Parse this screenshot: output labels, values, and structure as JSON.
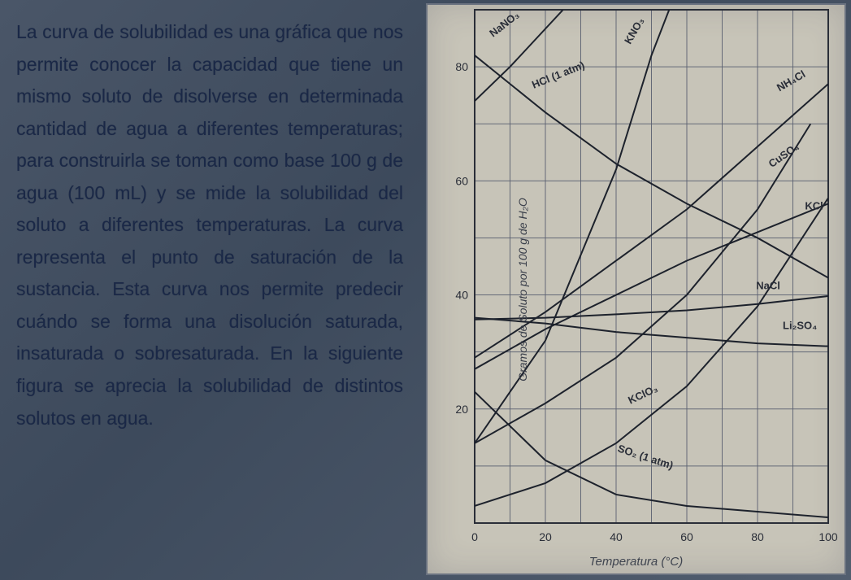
{
  "text": {
    "body": "La curva de solubilidad es una gráfica que nos permite conocer la capacidad que tiene un mismo soluto de disolverse en determinada cantidad de agua a diferentes temperaturas; para construirla se toman como base 100 g de agua (100 mL) y se mide la solubilidad del soluto a diferentes temperaturas. La curva representa el punto de saturación de la sustancia. Esta curva nos permite predecir cuándo se forma una disolución saturada, insaturada o sobresaturada. En la siguiente figura se aprecia la solubilidad de distintos solutos en agua."
  },
  "chart": {
    "type": "line",
    "background_color": "#c7c4b8",
    "grid_color": "#5a6070",
    "axis_color": "#2a2e38",
    "line_color": "#1d222c",
    "line_width": 2,
    "xlabel": "Temperatura (°C)",
    "ylabel": "Gramos de Soluto por 100 g de H₂O",
    "label_fontsize": 14,
    "tick_fontsize": 14,
    "xlim": [
      0,
      100
    ],
    "ylim": [
      0,
      90
    ],
    "xtick_step": 20,
    "yticks": [
      20,
      40,
      60,
      80
    ],
    "series": [
      {
        "name": "NaNO3",
        "label": "NaNO₃",
        "points": [
          [
            0,
            74
          ],
          [
            10,
            80
          ],
          [
            25,
            90
          ]
        ],
        "label_xy": [
          9,
          87
        ],
        "label_angle": -38
      },
      {
        "name": "HCl",
        "label": "HCl (1 atm)",
        "points": [
          [
            0,
            82
          ],
          [
            20,
            72
          ],
          [
            40,
            63
          ],
          [
            60,
            56
          ],
          [
            80,
            50
          ],
          [
            100,
            43
          ]
        ],
        "label_xy": [
          24,
          78
        ],
        "label_angle": -22
      },
      {
        "name": "KNO3",
        "label": "KNO₃",
        "points": [
          [
            0,
            14
          ],
          [
            20,
            32
          ],
          [
            40,
            62
          ],
          [
            50,
            82
          ],
          [
            55,
            90
          ]
        ],
        "label_xy": [
          46,
          86
        ],
        "label_angle": -60
      },
      {
        "name": "NH4Cl",
        "label": "NH₄Cl",
        "points": [
          [
            0,
            29
          ],
          [
            20,
            37
          ],
          [
            40,
            46
          ],
          [
            60,
            55
          ],
          [
            80,
            66
          ],
          [
            100,
            77
          ]
        ],
        "label_xy": [
          90,
          77
        ],
        "label_angle": -30
      },
      {
        "name": "CuSO4",
        "label": "CuSO₄",
        "points": [
          [
            0,
            14
          ],
          [
            20,
            21
          ],
          [
            40,
            29
          ],
          [
            60,
            40
          ],
          [
            80,
            55
          ],
          [
            95,
            70
          ]
        ],
        "label_xy": [
          88,
          64
        ],
        "label_angle": -35
      },
      {
        "name": "KCl",
        "label": "KCl",
        "points": [
          [
            0,
            27
          ],
          [
            20,
            34
          ],
          [
            40,
            40
          ],
          [
            60,
            46
          ],
          [
            80,
            51
          ],
          [
            100,
            56
          ]
        ],
        "label_xy": [
          96,
          55
        ],
        "label_angle": 0
      },
      {
        "name": "NaCl",
        "label": "NaCl",
        "points": [
          [
            0,
            35.7
          ],
          [
            20,
            36
          ],
          [
            40,
            36.6
          ],
          [
            60,
            37.3
          ],
          [
            80,
            38.4
          ],
          [
            100,
            39.8
          ]
        ],
        "label_xy": [
          83,
          41
        ],
        "label_angle": 0
      },
      {
        "name": "Li2SO4",
        "label": "Li₂SO₄",
        "points": [
          [
            0,
            36
          ],
          [
            20,
            35
          ],
          [
            40,
            33.5
          ],
          [
            60,
            32.5
          ],
          [
            80,
            31.5
          ],
          [
            100,
            31
          ]
        ],
        "label_xy": [
          92,
          34
        ],
        "label_angle": 0
      },
      {
        "name": "KClO3",
        "label": "KClO₃",
        "points": [
          [
            0,
            3
          ],
          [
            20,
            7
          ],
          [
            40,
            14
          ],
          [
            60,
            24
          ],
          [
            80,
            38
          ],
          [
            100,
            57
          ]
        ],
        "label_xy": [
          48,
          22
        ],
        "label_angle": -25
      },
      {
        "name": "SO2",
        "label": "SO₂ (1 atm)",
        "points": [
          [
            0,
            23
          ],
          [
            20,
            11
          ],
          [
            40,
            5
          ],
          [
            60,
            3
          ],
          [
            80,
            2
          ],
          [
            100,
            1
          ]
        ],
        "label_xy": [
          48,
          11
        ],
        "label_angle": 18
      }
    ],
    "series_label_fontsize": 13,
    "series_label_color": "#2a2e38"
  }
}
